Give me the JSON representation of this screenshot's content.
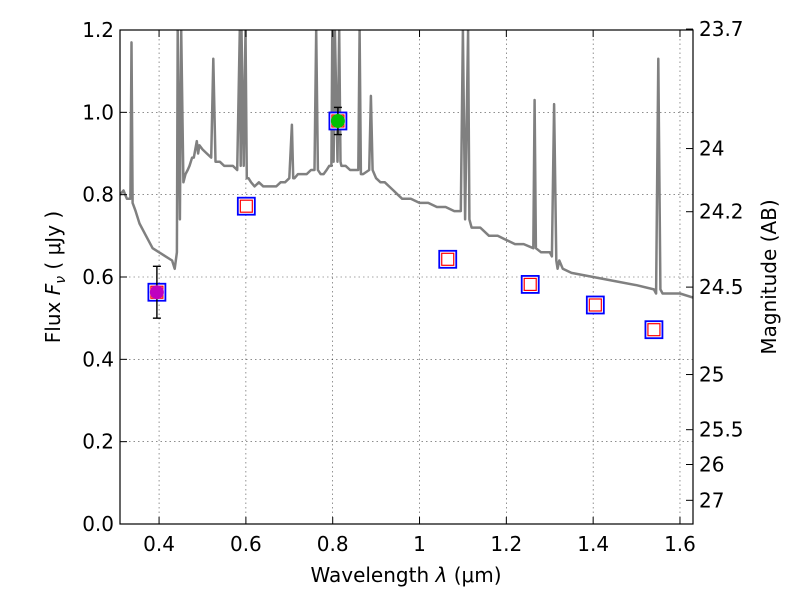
{
  "chart_data": {
    "type": "scatter",
    "title": "",
    "xlabel": "Wavelength  λ (μm)",
    "ylabel": "Flux  F_ν  ( μJy )",
    "ylabel_parts": {
      "main": "Flux  ",
      "symbol": "F",
      "subscript": "ν",
      "unit": "( μJy )"
    },
    "xlabel_parts": {
      "main": "Wavelength  ",
      "symbol": "λ",
      "unit": "(μm)"
    },
    "y2label": "Magnitude (AB)",
    "xlim": [
      0.31,
      1.63
    ],
    "ylim": [
      0.0,
      1.2
    ],
    "grid": true,
    "x_ticks": [
      {
        "value": 0.4,
        "label": "0.4"
      },
      {
        "value": 0.6,
        "label": "0.6"
      },
      {
        "value": 0.8,
        "label": "0.8"
      },
      {
        "value": 1.0,
        "label": "1"
      },
      {
        "value": 1.2,
        "label": "1.2"
      },
      {
        "value": 1.4,
        "label": "1.4"
      },
      {
        "value": 1.6,
        "label": "1.6"
      }
    ],
    "y_ticks": [
      {
        "value": 0.0,
        "label": "0.0"
      },
      {
        "value": 0.2,
        "label": "0.2"
      },
      {
        "value": 0.4,
        "label": "0.4"
      },
      {
        "value": 0.6,
        "label": "0.6"
      },
      {
        "value": 0.8,
        "label": "0.8"
      },
      {
        "value": 1.0,
        "label": "1.0"
      },
      {
        "value": 1.2,
        "label": "1.2"
      }
    ],
    "y2_ticks": [
      {
        "value": 23.7,
        "label": "23.7"
      },
      {
        "value": 24.0,
        "label": "24"
      },
      {
        "value": 24.2,
        "label": "24.2"
      },
      {
        "value": 24.5,
        "label": "24.5"
      },
      {
        "value": 25.0,
        "label": "25"
      },
      {
        "value": 25.5,
        "label": "25.5"
      },
      {
        "value": 26.0,
        "label": "26"
      },
      {
        "value": 27.0,
        "label": "27"
      }
    ],
    "series": [
      {
        "kind": "model_spectrum",
        "color": "#808080",
        "x": [
          0.31,
          0.318,
          0.326,
          0.334,
          0.3365,
          0.339,
          0.346,
          0.355,
          0.37,
          0.385,
          0.4,
          0.415,
          0.43,
          0.436,
          0.441,
          0.443,
          0.448,
          0.451,
          0.456,
          0.461,
          0.466,
          0.47,
          0.473,
          0.476,
          0.48,
          0.487,
          0.49,
          0.493,
          0.5,
          0.51,
          0.52,
          0.525,
          0.53,
          0.54,
          0.55,
          0.56,
          0.57,
          0.58,
          0.586,
          0.588,
          0.59,
          0.595,
          0.599,
          0.602,
          0.606,
          0.612,
          0.62,
          0.63,
          0.64,
          0.65,
          0.66,
          0.67,
          0.68,
          0.69,
          0.7,
          0.706,
          0.709,
          0.712,
          0.72,
          0.73,
          0.74,
          0.75,
          0.758,
          0.762,
          0.766,
          0.772,
          0.779,
          0.786,
          0.792,
          0.797,
          0.799,
          0.802,
          0.805,
          0.811,
          0.815,
          0.818,
          0.82,
          0.83,
          0.84,
          0.85,
          0.859,
          0.862,
          0.865,
          0.87,
          0.884,
          0.888,
          0.892,
          0.9,
          0.91,
          0.92,
          0.93,
          0.94,
          0.95,
          0.96,
          0.97,
          0.98,
          1.0,
          1.02,
          1.04,
          1.06,
          1.08,
          1.095,
          1.1,
          1.105,
          1.112,
          1.115,
          1.12,
          1.14,
          1.16,
          1.18,
          1.2,
          1.22,
          1.24,
          1.262,
          1.265,
          1.268,
          1.28,
          1.3,
          1.305,
          1.31,
          1.315,
          1.318,
          1.322,
          1.33,
          1.35,
          1.4,
          1.45,
          1.5,
          1.54,
          1.545,
          1.55,
          1.555,
          1.56,
          1.6,
          1.63
        ],
        "y": [
          0.8,
          0.81,
          0.79,
          0.79,
          1.17,
          0.78,
          0.76,
          0.73,
          0.7,
          0.67,
          0.66,
          0.65,
          0.64,
          0.62,
          0.66,
          1.2,
          0.74,
          1.2,
          0.83,
          0.85,
          0.86,
          0.87,
          0.88,
          0.89,
          0.89,
          0.93,
          0.9,
          0.92,
          0.91,
          0.9,
          0.89,
          1.13,
          0.88,
          0.88,
          0.87,
          0.87,
          0.87,
          0.86,
          1.2,
          0.87,
          1.2,
          0.87,
          1.2,
          0.84,
          0.84,
          0.83,
          0.82,
          0.83,
          0.82,
          0.82,
          0.82,
          0.82,
          0.83,
          0.83,
          0.84,
          0.97,
          0.84,
          0.84,
          0.85,
          0.85,
          0.85,
          0.86,
          0.86,
          1.2,
          0.86,
          0.85,
          0.85,
          0.86,
          0.87,
          0.87,
          1.2,
          0.88,
          1.2,
          0.88,
          1.2,
          0.88,
          0.87,
          0.87,
          0.86,
          0.86,
          0.86,
          1.2,
          0.85,
          0.85,
          0.86,
          1.04,
          0.86,
          0.84,
          0.83,
          0.83,
          0.82,
          0.81,
          0.8,
          0.79,
          0.79,
          0.79,
          0.78,
          0.78,
          0.77,
          0.77,
          0.76,
          0.76,
          1.2,
          0.74,
          1.2,
          0.74,
          0.72,
          0.72,
          0.7,
          0.7,
          0.69,
          0.68,
          0.68,
          0.67,
          1.03,
          0.67,
          0.66,
          0.66,
          0.65,
          1.02,
          0.64,
          0.62,
          0.64,
          0.62,
          0.61,
          0.6,
          0.59,
          0.58,
          0.57,
          0.56,
          1.13,
          0.57,
          0.56,
          0.56,
          0.55
        ]
      },
      {
        "kind": "photometry",
        "name": "",
        "points": [
          {
            "x": 0.395,
            "y": 0.563,
            "yerr": 0.063,
            "fill": "#bf00bf",
            "model": 0.563,
            "model_fill": "#ffffff"
          },
          {
            "x": 0.601,
            "y": 0.772,
            "fill": "#ffffff",
            "model": 0.772,
            "model_fill": "#ffffff"
          },
          {
            "x": 0.812,
            "y": 0.979,
            "yerr": 0.033,
            "fill": "#00c000",
            "model": 0.979,
            "model_fill": "#ffffff"
          },
          {
            "x": 1.065,
            "model": 0.643,
            "model_fill": "#ffffff"
          },
          {
            "x": 1.255,
            "model": 0.582,
            "model_fill": "#ffffff"
          },
          {
            "x": 1.405,
            "model": 0.532,
            "model_fill": "#ffffff"
          },
          {
            "x": 1.54,
            "model": 0.472,
            "model_fill": "#ffffff"
          }
        ]
      }
    ],
    "colors": {
      "model_square": "#0000ff",
      "predicted_square": "#ff0000",
      "errorbar": "#000000",
      "spectrum": "#808080"
    }
  }
}
